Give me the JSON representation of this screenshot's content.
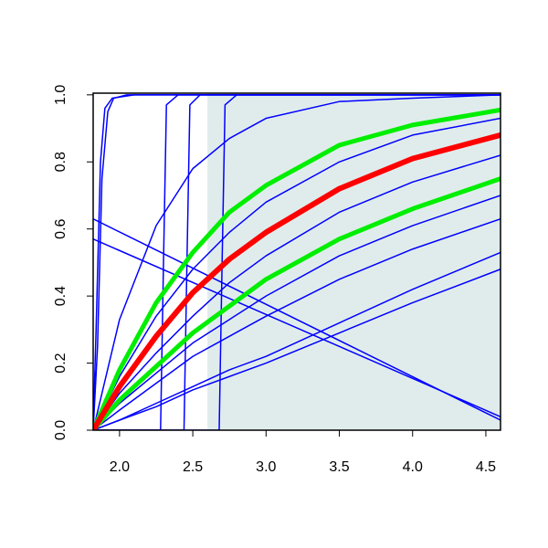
{
  "chart_data": {
    "type": "line",
    "xlim": [
      1.82,
      4.6
    ],
    "ylim": [
      0,
      1.005
    ],
    "xticks": [
      {
        "value": 2.0,
        "label": "2.0"
      },
      2.5,
      {
        "value": 3.0,
        "label": "3.0"
      },
      3.5,
      {
        "value": 4.0,
        "label": "4.0"
      },
      4.5
    ],
    "yticks": [
      {
        "value": 0.0,
        "label": "0.0"
      },
      0.2,
      0.4,
      0.6,
      0.8,
      {
        "value": 1.0,
        "label": "1.0"
      }
    ],
    "shade": {
      "xlim": [
        2.6,
        4.6
      ],
      "ylim": [
        0,
        1.005
      ],
      "color": "#e0ecec"
    },
    "series": [
      {
        "color": "#0000ff",
        "width": 1.5,
        "x": [
          1.82,
          2.0,
          2.25,
          2.5,
          2.75,
          3.0,
          3.5,
          4.0,
          4.6
        ],
        "values": [
          0,
          0.16,
          0.34,
          0.48,
          0.59,
          0.68,
          0.8,
          0.88,
          0.93
        ]
      },
      {
        "color": "#0000ff",
        "width": 1.5,
        "x": [
          1.82,
          2.0,
          2.25,
          2.5,
          2.75,
          3.0,
          3.5,
          4.0,
          4.6
        ],
        "values": [
          0,
          0.11,
          0.23,
          0.34,
          0.44,
          0.52,
          0.65,
          0.74,
          0.82
        ]
      },
      {
        "color": "#0000ff",
        "width": 1.5,
        "x": [
          1.82,
          2.0,
          2.25,
          2.5,
          2.75,
          3.0,
          3.5,
          4.0,
          4.6
        ],
        "values": [
          0,
          0.08,
          0.17,
          0.26,
          0.33,
          0.4,
          0.52,
          0.61,
          0.7
        ]
      },
      {
        "color": "#0000ff",
        "width": 1.5,
        "x": [
          1.82,
          2.0,
          2.25,
          2.5,
          2.75,
          3.0,
          3.5,
          4.0,
          4.6
        ],
        "values": [
          0,
          0.06,
          0.14,
          0.22,
          0.28,
          0.34,
          0.45,
          0.54,
          0.63
        ]
      },
      {
        "color": "#0000ff",
        "width": 1.5,
        "x": [
          1.82,
          2.0,
          2.25,
          2.5,
          2.75,
          3.0,
          3.5,
          4.0,
          4.6
        ],
        "values": [
          0,
          0.03,
          0.08,
          0.13,
          0.18,
          0.22,
          0.32,
          0.42,
          0.53
        ]
      },
      {
        "color": "#0000ff",
        "width": 1.5,
        "x": [
          1.82,
          2.0,
          2.25,
          2.5,
          2.75,
          3.0,
          3.5,
          4.0,
          4.6
        ],
        "values": [
          0,
          0.03,
          0.07,
          0.12,
          0.16,
          0.2,
          0.29,
          0.38,
          0.48
        ]
      },
      {
        "color": "#0000ff",
        "width": 1.5,
        "x": [
          1.82,
          2.0,
          2.25,
          2.5,
          2.75,
          3.0,
          3.5,
          4.0,
          4.6
        ],
        "values": [
          0,
          0.33,
          0.61,
          0.78,
          0.87,
          0.93,
          0.98,
          0.99,
          1.0
        ]
      },
      {
        "color": "#0000ff",
        "width": 1.5,
        "x": [
          1.82,
          1.85,
          1.88,
          1.92,
          1.96,
          2.05,
          4.6
        ],
        "values": [
          0,
          0.25,
          0.75,
          0.95,
          0.99,
          1,
          1
        ]
      },
      {
        "color": "#0000ff",
        "width": 1.5,
        "x": [
          1.82,
          1.84,
          1.87,
          1.9,
          1.95,
          2.1,
          4.6
        ],
        "values": [
          0,
          0.3,
          0.8,
          0.96,
          0.99,
          1,
          1
        ]
      },
      {
        "color": "#0000ff",
        "width": 1.5,
        "x": [
          1.82,
          2.28,
          2.3,
          2.32,
          2.4,
          4.6
        ],
        "values": [
          0,
          0,
          0.5,
          0.97,
          1,
          1
        ]
      },
      {
        "color": "#0000ff",
        "width": 1.5,
        "x": [
          1.82,
          2.44,
          2.46,
          2.48,
          2.55,
          4.6
        ],
        "values": [
          0,
          0,
          0.5,
          0.97,
          1,
          1
        ]
      },
      {
        "color": "#0000ff",
        "width": 1.5,
        "x": [
          1.82,
          2.68,
          2.7,
          2.72,
          2.8,
          4.6
        ],
        "values": [
          0,
          0,
          0.5,
          0.97,
          1,
          1
        ]
      },
      {
        "color": "#0000ff",
        "width": 1.5,
        "x": [
          1.82,
          4.6
        ],
        "values": [
          0.63,
          0.03
        ]
      },
      {
        "color": "#0000ff",
        "width": 1.5,
        "x": [
          1.82,
          4.6
        ],
        "values": [
          0.57,
          0.04
        ]
      },
      {
        "color": "#00ee00",
        "width": 5,
        "x": [
          1.82,
          2.0,
          2.25,
          2.5,
          2.75,
          3.0,
          3.5,
          4.0,
          4.6
        ],
        "values": [
          0,
          0.18,
          0.38,
          0.53,
          0.65,
          0.73,
          0.85,
          0.91,
          0.955
        ]
      },
      {
        "color": "#00ee00",
        "width": 5,
        "x": [
          1.82,
          2.0,
          2.25,
          2.5,
          2.75,
          3.0,
          3.5,
          4.0,
          4.6
        ],
        "values": [
          0,
          0.09,
          0.19,
          0.29,
          0.37,
          0.45,
          0.57,
          0.66,
          0.75
        ]
      },
      {
        "color": "#ff0000",
        "width": 6,
        "x": [
          1.82,
          2.0,
          2.25,
          2.5,
          2.75,
          3.0,
          3.5,
          4.0,
          4.6
        ],
        "values": [
          0,
          0.13,
          0.28,
          0.41,
          0.51,
          0.59,
          0.72,
          0.81,
          0.88
        ]
      }
    ]
  }
}
